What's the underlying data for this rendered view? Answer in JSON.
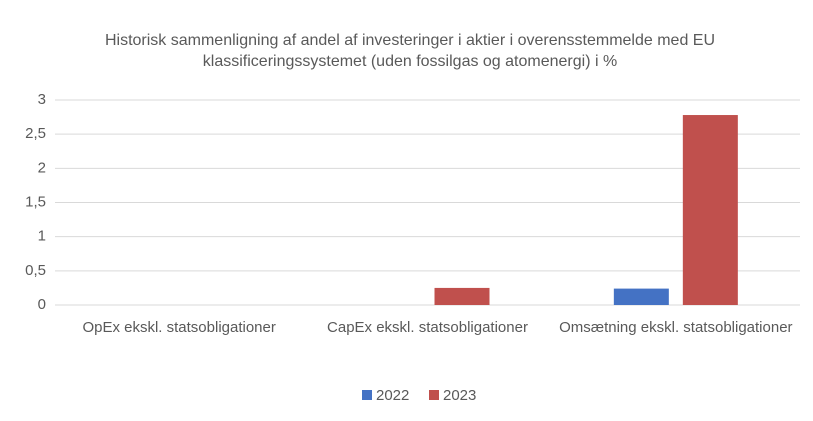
{
  "chart_data": {
    "type": "bar",
    "title": "Historisk sammenligning af andel af investeringer i aktier i overensstemmelde med EU klassificeringssystemet (uden fossilgas og atomenergi) i %",
    "categories": [
      "OpEx ekskl. statsobligationer",
      "CapEx ekskl. statsobligationer",
      "Omsætning ekskl. statsobligationer"
    ],
    "series": [
      {
        "name": "2022",
        "color": "#4472c4",
        "values": [
          0,
          0,
          0.24
        ]
      },
      {
        "name": "2023",
        "color": "#c0504d",
        "values": [
          0,
          0.25,
          2.78
        ]
      }
    ],
    "ylim": [
      0,
      3
    ],
    "yticks": [
      0,
      {
        "value": 0.5,
        "label": "0,5"
      },
      1,
      {
        "value": 1.5,
        "label": "1,5"
      },
      2,
      {
        "value": 2.5,
        "label": "2,5"
      },
      3
    ],
    "grid": true,
    "legend": "bottom"
  }
}
